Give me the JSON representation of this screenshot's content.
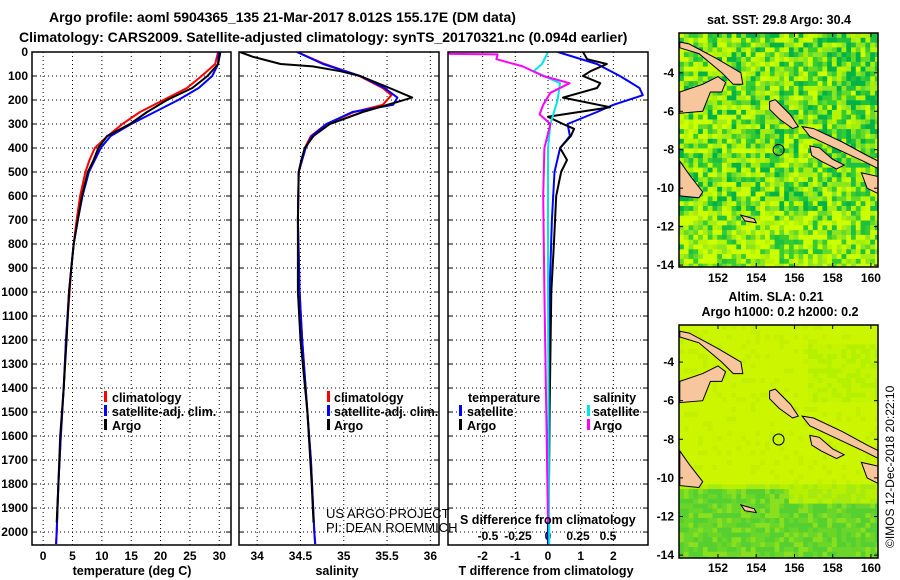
{
  "header": {
    "title_line1": "Argo profile: aoml 5904365_135 21-Mar-2017 8.012S 155.17E (DM data)",
    "title_line2": "Climatology: CARS2009. Satellite-adjusted climatology: synTS_20170321.nc (0.094d earlier)"
  },
  "credits": {
    "project": "US ARGO PROJECT",
    "pi": "PI: DEAN ROEMMICH",
    "watermark": "©IMOS 12-Dec-2018 20:22:10"
  },
  "colors": {
    "climatology": "#ff0000",
    "satellite": "#0000ff",
    "argo": "#000000",
    "salinity_satellite": "#00e5e5",
    "salinity_argo": "#ff00ff",
    "land": "#f7c69c"
  },
  "chart_data": [
    {
      "type": "line",
      "id": "temperature",
      "xlabel": "temperature (deg C)",
      "ylabel": "",
      "xlim": [
        -1.9,
        32
      ],
      "ylim": [
        2054,
        0
      ],
      "xticks": [
        "0",
        "5",
        "10",
        "15",
        "20",
        "25",
        "30"
      ],
      "xtick_values": [
        0,
        5,
        10,
        15,
        20,
        25,
        30
      ],
      "yticks": [
        "0",
        "100",
        "200",
        "300",
        "400",
        "500",
        "600",
        "700",
        "800",
        "900",
        "1000",
        "1100",
        "1200",
        "1300",
        "1400",
        "1500",
        "1600",
        "1700",
        "1800",
        "1900",
        "2000"
      ],
      "ytick_values": [
        0,
        100,
        200,
        300,
        400,
        500,
        600,
        700,
        800,
        900,
        1000,
        1100,
        1200,
        1300,
        1400,
        1500,
        1600,
        1700,
        1800,
        1900,
        2000
      ],
      "legend": [
        "climatology",
        "satellite-adj. clim.",
        "Argo"
      ],
      "series": [
        {
          "name": "climatology",
          "color": "#ff0000",
          "depth": [
            0,
            50,
            100,
            150,
            200,
            250,
            300,
            350,
            400,
            450,
            500,
            600,
            700,
            800,
            900,
            1000,
            1200,
            1400,
            1600,
            1800,
            2000,
            2050
          ],
          "values": [
            29.8,
            29.3,
            27,
            24.5,
            20.5,
            16.5,
            13.5,
            11,
            8.8,
            7.9,
            7.2,
            6.3,
            5.7,
            5.2,
            4.8,
            4.5,
            3.9,
            3.5,
            3.0,
            2.6,
            2.3,
            2.2
          ]
        },
        {
          "name": "satellite-adj. clim.",
          "color": "#0000ff",
          "depth": [
            0,
            50,
            100,
            150,
            200,
            250,
            300,
            350,
            400,
            450,
            500,
            600,
            700,
            800,
            900,
            1000,
            1200,
            1400,
            1600,
            1800,
            2000,
            2050
          ],
          "values": [
            29.9,
            29.8,
            28.8,
            26.5,
            23,
            19,
            15,
            11.5,
            9.8,
            8.8,
            7.8,
            6.7,
            5.9,
            5.2,
            4.8,
            4.4,
            3.9,
            3.5,
            3.0,
            2.6,
            2.3,
            2.2
          ]
        },
        {
          "name": "Argo",
          "color": "#000000",
          "depth": [
            0,
            50,
            100,
            150,
            200,
            250,
            300,
            350,
            400,
            450,
            500,
            600,
            700,
            800,
            900,
            1000,
            1200,
            1400,
            1600,
            1800,
            1960
          ],
          "values": [
            30.2,
            29.8,
            28,
            25.4,
            21.1,
            17.7,
            14.8,
            10.9,
            9.4,
            8.6,
            7.6,
            6.6,
            5.9,
            5.2,
            4.8,
            4.4,
            4.0,
            3.5,
            2.9,
            2.6,
            2.3
          ]
        }
      ]
    },
    {
      "type": "line",
      "id": "salinity",
      "xlabel": "salinity",
      "xlim": [
        33.79,
        36.1
      ],
      "ylim": [
        2054,
        0
      ],
      "xticks": [
        "34",
        "34.5",
        "35",
        "35.5",
        "36"
      ],
      "xtick_values": [
        34,
        34.5,
        35,
        35.5,
        36
      ],
      "legend": [
        "climatology",
        "satellite-adj. clim.",
        "Argo"
      ],
      "series": [
        {
          "name": "climatology",
          "color": "#ff0000",
          "depth": [
            0,
            50,
            100,
            150,
            180,
            220,
            250,
            300,
            350,
            400,
            500,
            700,
            1000,
            1200,
            1500,
            1700,
            2000,
            2050
          ],
          "values": [
            34.46,
            34.78,
            35.18,
            35.45,
            35.55,
            35.45,
            35.12,
            34.8,
            34.62,
            34.55,
            34.48,
            34.47,
            34.49,
            34.52,
            34.58,
            34.62,
            34.66,
            34.67
          ]
        },
        {
          "name": "satellite-adj. clim.",
          "color": "#0000ff",
          "depth": [
            0,
            50,
            100,
            150,
            190,
            220,
            250,
            300,
            350,
            400,
            500,
            700,
            1000,
            1200,
            1500,
            1700,
            2000,
            2050
          ],
          "values": [
            34.46,
            34.76,
            35.19,
            35.47,
            35.62,
            35.57,
            35.1,
            34.8,
            34.63,
            34.56,
            34.48,
            34.47,
            34.49,
            34.52,
            34.58,
            34.62,
            34.66,
            34.67
          ]
        },
        {
          "name": "Argo",
          "color": "#000000",
          "depth": [
            0,
            20,
            50,
            60,
            80,
            100,
            150,
            190,
            210,
            250,
            300,
            350,
            400,
            450,
            500,
            700,
            1000,
            1200,
            1500,
            1800,
            1960
          ],
          "values": [
            33.8,
            33.95,
            34.27,
            34.64,
            34.96,
            35.19,
            35.53,
            35.79,
            35.6,
            35.22,
            34.84,
            34.65,
            34.55,
            34.51,
            34.48,
            34.47,
            34.47,
            34.5,
            34.58,
            34.63,
            34.65
          ]
        }
      ]
    },
    {
      "type": "line",
      "id": "difference",
      "xlabel": "T difference from climatology",
      "xlabel_secondary": "S difference from climatology",
      "xlim": [
        -3.06,
        3.06
      ],
      "xlim_secondary": [
        -0.833,
        0.833
      ],
      "ylim": [
        2054,
        0
      ],
      "xticks": [
        "-2",
        "-1",
        "0",
        "1",
        "2"
      ],
      "xtick_values": [
        -2,
        -1,
        0,
        1,
        2
      ],
      "xticks_secondary": [
        "-0.5",
        "-0.25",
        "0",
        "0.25",
        "0.5"
      ],
      "xtick_values_secondary": [
        -0.5,
        -0.25,
        0,
        0.25,
        0.5
      ],
      "legend_temperature": {
        "heading": "temperature",
        "items": [
          "satellite",
          "Argo"
        ]
      },
      "legend_salinity": {
        "heading": "salinity",
        "items": [
          "satellite",
          "Argo"
        ]
      },
      "series": [
        {
          "name": "temperature satellite",
          "axis": "T",
          "color": "#0000ff",
          "depth": [
            0,
            50,
            100,
            150,
            180,
            220,
            250,
            300,
            350,
            400,
            500,
            700,
            1000,
            1500,
            2000,
            2050
          ],
          "values": [
            0.3,
            1.5,
            2.2,
            2.8,
            2.9,
            2.0,
            1.5,
            0.6,
            0.67,
            0.37,
            0.2,
            0.12,
            0.05,
            0.02,
            0,
            0
          ]
        },
        {
          "name": "temperature Argo",
          "axis": "T",
          "color": "#000000",
          "depth": [
            0,
            30,
            50,
            80,
            100,
            130,
            150,
            190,
            230,
            270,
            300,
            320,
            350,
            400,
            450,
            500,
            600,
            800,
            1000,
            1500,
            1960
          ],
          "values": [
            1.07,
            1.2,
            1.8,
            1.3,
            1.07,
            1.6,
            1.5,
            0.46,
            1.9,
            0.0,
            0.46,
            0.8,
            0.7,
            0.37,
            0.58,
            0.4,
            0.25,
            0.18,
            0.1,
            0.05,
            0.02
          ]
        },
        {
          "name": "salinity satellite",
          "axis": "S",
          "color": "#00e5e5",
          "depth": [
            0,
            50,
            80,
            130,
            200,
            300,
            400,
            1000,
            2000,
            2050
          ],
          "values": [
            0,
            -0.05,
            -0.12,
            0.1,
            0.08,
            0.02,
            0.0,
            0.0,
            0.01,
            0.01
          ]
        },
        {
          "name": "salinity Argo",
          "axis": "S",
          "color": "#ff00ff",
          "depth": [
            0,
            8,
            10,
            30,
            60,
            100,
            130,
            170,
            220,
            260,
            300,
            400,
            600,
            1000,
            1960
          ],
          "values": [
            -0.82,
            -0.82,
            -0.42,
            -0.43,
            -0.21,
            -0.04,
            0.18,
            0.02,
            -0.04,
            -0.07,
            0.02,
            -0.03,
            -0.04,
            -0.03,
            0
          ]
        }
      ]
    }
  ],
  "maps": [
    {
      "id": "sst",
      "title": "sat. SST: 29.8 Argo: 30.4",
      "lat_ticks": [
        "-4",
        "-6",
        "-8",
        "-10",
        "-12",
        "-14"
      ],
      "lat_values": [
        -4,
        -6,
        -8,
        -10,
        -12,
        -14
      ],
      "lon_ticks": [
        "152",
        "154",
        "156",
        "158",
        "160"
      ],
      "lon_values": [
        152,
        154,
        156,
        158,
        160
      ],
      "lon_range": [
        149.96,
        160.37
      ],
      "lat_range": [
        -1.93,
        -14.1
      ],
      "float_position": [
        155.17,
        -8.012
      ]
    },
    {
      "id": "sla",
      "title_line1": "Altim. SLA: 0.21",
      "title_line2": "Argo h1000: 0.2 h2000: 0.2",
      "lat_ticks": [
        "-4",
        "-6",
        "-8",
        "-10",
        "-12",
        "-14"
      ],
      "lat_values": [
        -4,
        -6,
        -8,
        -10,
        -12,
        -14
      ],
      "lon_ticks": [
        "152",
        "154",
        "156",
        "158",
        "160"
      ],
      "lon_values": [
        152,
        154,
        156,
        158,
        160
      ],
      "lon_range": [
        149.96,
        160.37
      ],
      "lat_range": [
        -2.08,
        -14.15
      ],
      "float_position": [
        155.17,
        -8.012
      ]
    }
  ],
  "land": [
    [
      [
        150.0,
        -2.4
      ],
      [
        150.5,
        -2.5
      ],
      [
        152.0,
        -3.3
      ],
      [
        153.2,
        -4.0
      ],
      [
        153.3,
        -4.6
      ],
      [
        152.8,
        -4.6
      ],
      [
        152.2,
        -4.0
      ],
      [
        151.0,
        -3.0
      ],
      [
        150.0,
        -2.7
      ]
    ],
    [
      [
        150.0,
        -5.0
      ],
      [
        151.2,
        -4.6
      ],
      [
        152.0,
        -4.2
      ],
      [
        152.4,
        -4.5
      ],
      [
        152.2,
        -5.0
      ],
      [
        151.6,
        -5.0
      ],
      [
        151.2,
        -6.0
      ],
      [
        150.0,
        -6.1
      ]
    ],
    [
      [
        154.7,
        -5.5
      ],
      [
        155.0,
        -5.4
      ],
      [
        155.8,
        -6.2
      ],
      [
        156.2,
        -6.8
      ],
      [
        155.9,
        -6.9
      ],
      [
        155.2,
        -6.4
      ],
      [
        154.7,
        -5.9
      ]
    ],
    [
      [
        156.4,
        -6.8
      ],
      [
        157.0,
        -6.9
      ],
      [
        158.5,
        -7.6
      ],
      [
        159.8,
        -8.3
      ],
      [
        160.4,
        -8.6
      ],
      [
        160.4,
        -9.0
      ],
      [
        159.6,
        -8.6
      ],
      [
        158.3,
        -8.0
      ],
      [
        156.8,
        -7.3
      ]
    ],
    [
      [
        156.8,
        -7.8
      ],
      [
        157.3,
        -7.9
      ],
      [
        158.0,
        -8.5
      ],
      [
        158.6,
        -8.8
      ],
      [
        158.2,
        -9.0
      ],
      [
        157.4,
        -8.6
      ],
      [
        156.9,
        -8.3
      ]
    ],
    [
      [
        159.5,
        -9.2
      ],
      [
        160.4,
        -9.4
      ],
      [
        160.4,
        -10.3
      ],
      [
        159.8,
        -10.0
      ]
    ],
    [
      [
        150.0,
        -8.6
      ],
      [
        150.5,
        -9.3
      ],
      [
        151.2,
        -10.2
      ],
      [
        151.0,
        -10.5
      ],
      [
        150.0,
        -10.4
      ]
    ],
    [
      [
        153.2,
        -11.4
      ],
      [
        153.9,
        -11.6
      ],
      [
        154.0,
        -11.8
      ],
      [
        153.4,
        -11.7
      ]
    ]
  ]
}
